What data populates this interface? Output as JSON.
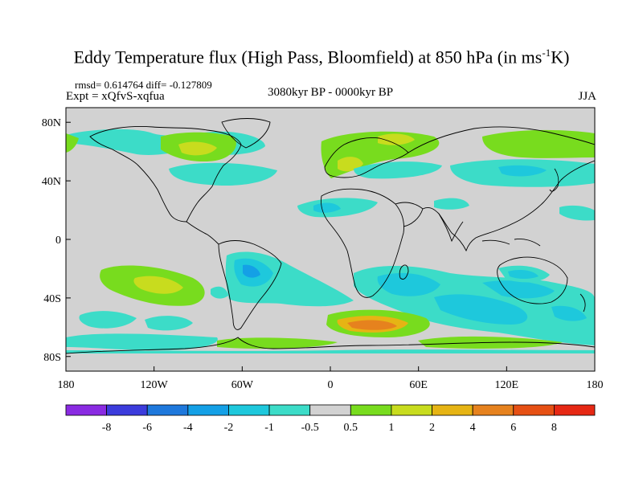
{
  "header": {
    "title_prefix": "Eddy Temperature flux (High Pass, Bloomfield) at 850 hPa (in ms",
    "title_sup": "-1",
    "title_suffix": "K)",
    "stats": "rmsd= 0.614764 diff= -0.127809",
    "experiment": "Expt = xQfvS-xqfua",
    "period": "3080kyr BP - 0000kyr BP",
    "season": "JJA"
  },
  "map": {
    "projection": "cylindrical-equidistant",
    "lon_range": [
      -180,
      180
    ],
    "lat_range": [
      -90,
      90
    ],
    "x_ticks": [
      {
        "value": -180,
        "label": "180"
      },
      {
        "value": -120,
        "label": "120W"
      },
      {
        "value": -60,
        "label": "60W"
      },
      {
        "value": 0,
        "label": "0"
      },
      {
        "value": 60,
        "label": "60E"
      },
      {
        "value": 120,
        "label": "120E"
      },
      {
        "value": 180,
        "label": "180"
      }
    ],
    "y_ticks": [
      {
        "value": 80,
        "label": "80N"
      },
      {
        "value": 40,
        "label": "40N"
      },
      {
        "value": 0,
        "label": "0"
      },
      {
        "value": -40,
        "label": "40S"
      },
      {
        "value": -80,
        "label": "80S"
      }
    ],
    "background_color": "#d2d2d2",
    "coastline_color": "#000000"
  },
  "colorbar": {
    "labels": [
      "-8",
      "-6",
      "-4",
      "-2",
      "-1",
      "-0.5",
      "0.5",
      "1",
      "2",
      "4",
      "6",
      "8"
    ],
    "colors": [
      "#8a2be2",
      "#3c3cdc",
      "#1e78dc",
      "#14a0e6",
      "#1ec8dc",
      "#3cdcc8",
      "#d2d2d2",
      "#78dc1e",
      "#c8dc1e",
      "#e6b414",
      "#e6821e",
      "#e65014",
      "#e62814"
    ]
  },
  "chart_data": {
    "type": "contour-map",
    "variable": "Eddy Temperature flux (High Pass, Bloomfield) at 850 hPa",
    "units": "ms-1K",
    "levels": [
      -8,
      -6,
      -4,
      -2,
      -1,
      -0.5,
      0.5,
      1,
      2,
      4,
      6,
      8
    ],
    "regions": [
      {
        "desc": "North Atlantic / Canada",
        "lon": -90,
        "lat": 62,
        "value_min": 1,
        "value_max": 2
      },
      {
        "desc": "Scandinavia / N Europe",
        "lon": 10,
        "lat": 60,
        "value_min": 1,
        "value_max": 2
      },
      {
        "desc": "Siberia / N Pacific",
        "lon": 140,
        "lat": 68,
        "value_min": 0.5,
        "value_max": 1
      },
      {
        "desc": "Eastern N America",
        "lon": -70,
        "lat": 40,
        "value_min": -1,
        "value_max": -0.5
      },
      {
        "desc": "North Pacific",
        "lon": 140,
        "lat": 42,
        "value_min": -1,
        "value_max": -0.5
      },
      {
        "desc": "Subtropical N Atlantic",
        "lon": -10,
        "lat": 22,
        "value_min": -1,
        "value_max": -0.5
      },
      {
        "desc": "South America / S Atlantic",
        "lon": -50,
        "lat": -30,
        "value_min": -2,
        "value_max": -1
      },
      {
        "desc": "SE South Pacific",
        "lon": -140,
        "lat": -30,
        "value_min": 1,
        "value_max": 2
      },
      {
        "desc": "Southern Ocean S of Africa",
        "lon": 30,
        "lat": -62,
        "value_min": 2,
        "value_max": 4
      },
      {
        "desc": "Southern Indian Ocean",
        "lon": 80,
        "lat": -45,
        "value_min": -2,
        "value_max": -1
      },
      {
        "desc": "Australia",
        "lon": 135,
        "lat": -25,
        "value_min": -1,
        "value_max": -0.5
      },
      {
        "desc": "Antarctic coast",
        "lon": 0,
        "lat": -78,
        "value_min": 0.5,
        "value_max": 1
      }
    ]
  }
}
